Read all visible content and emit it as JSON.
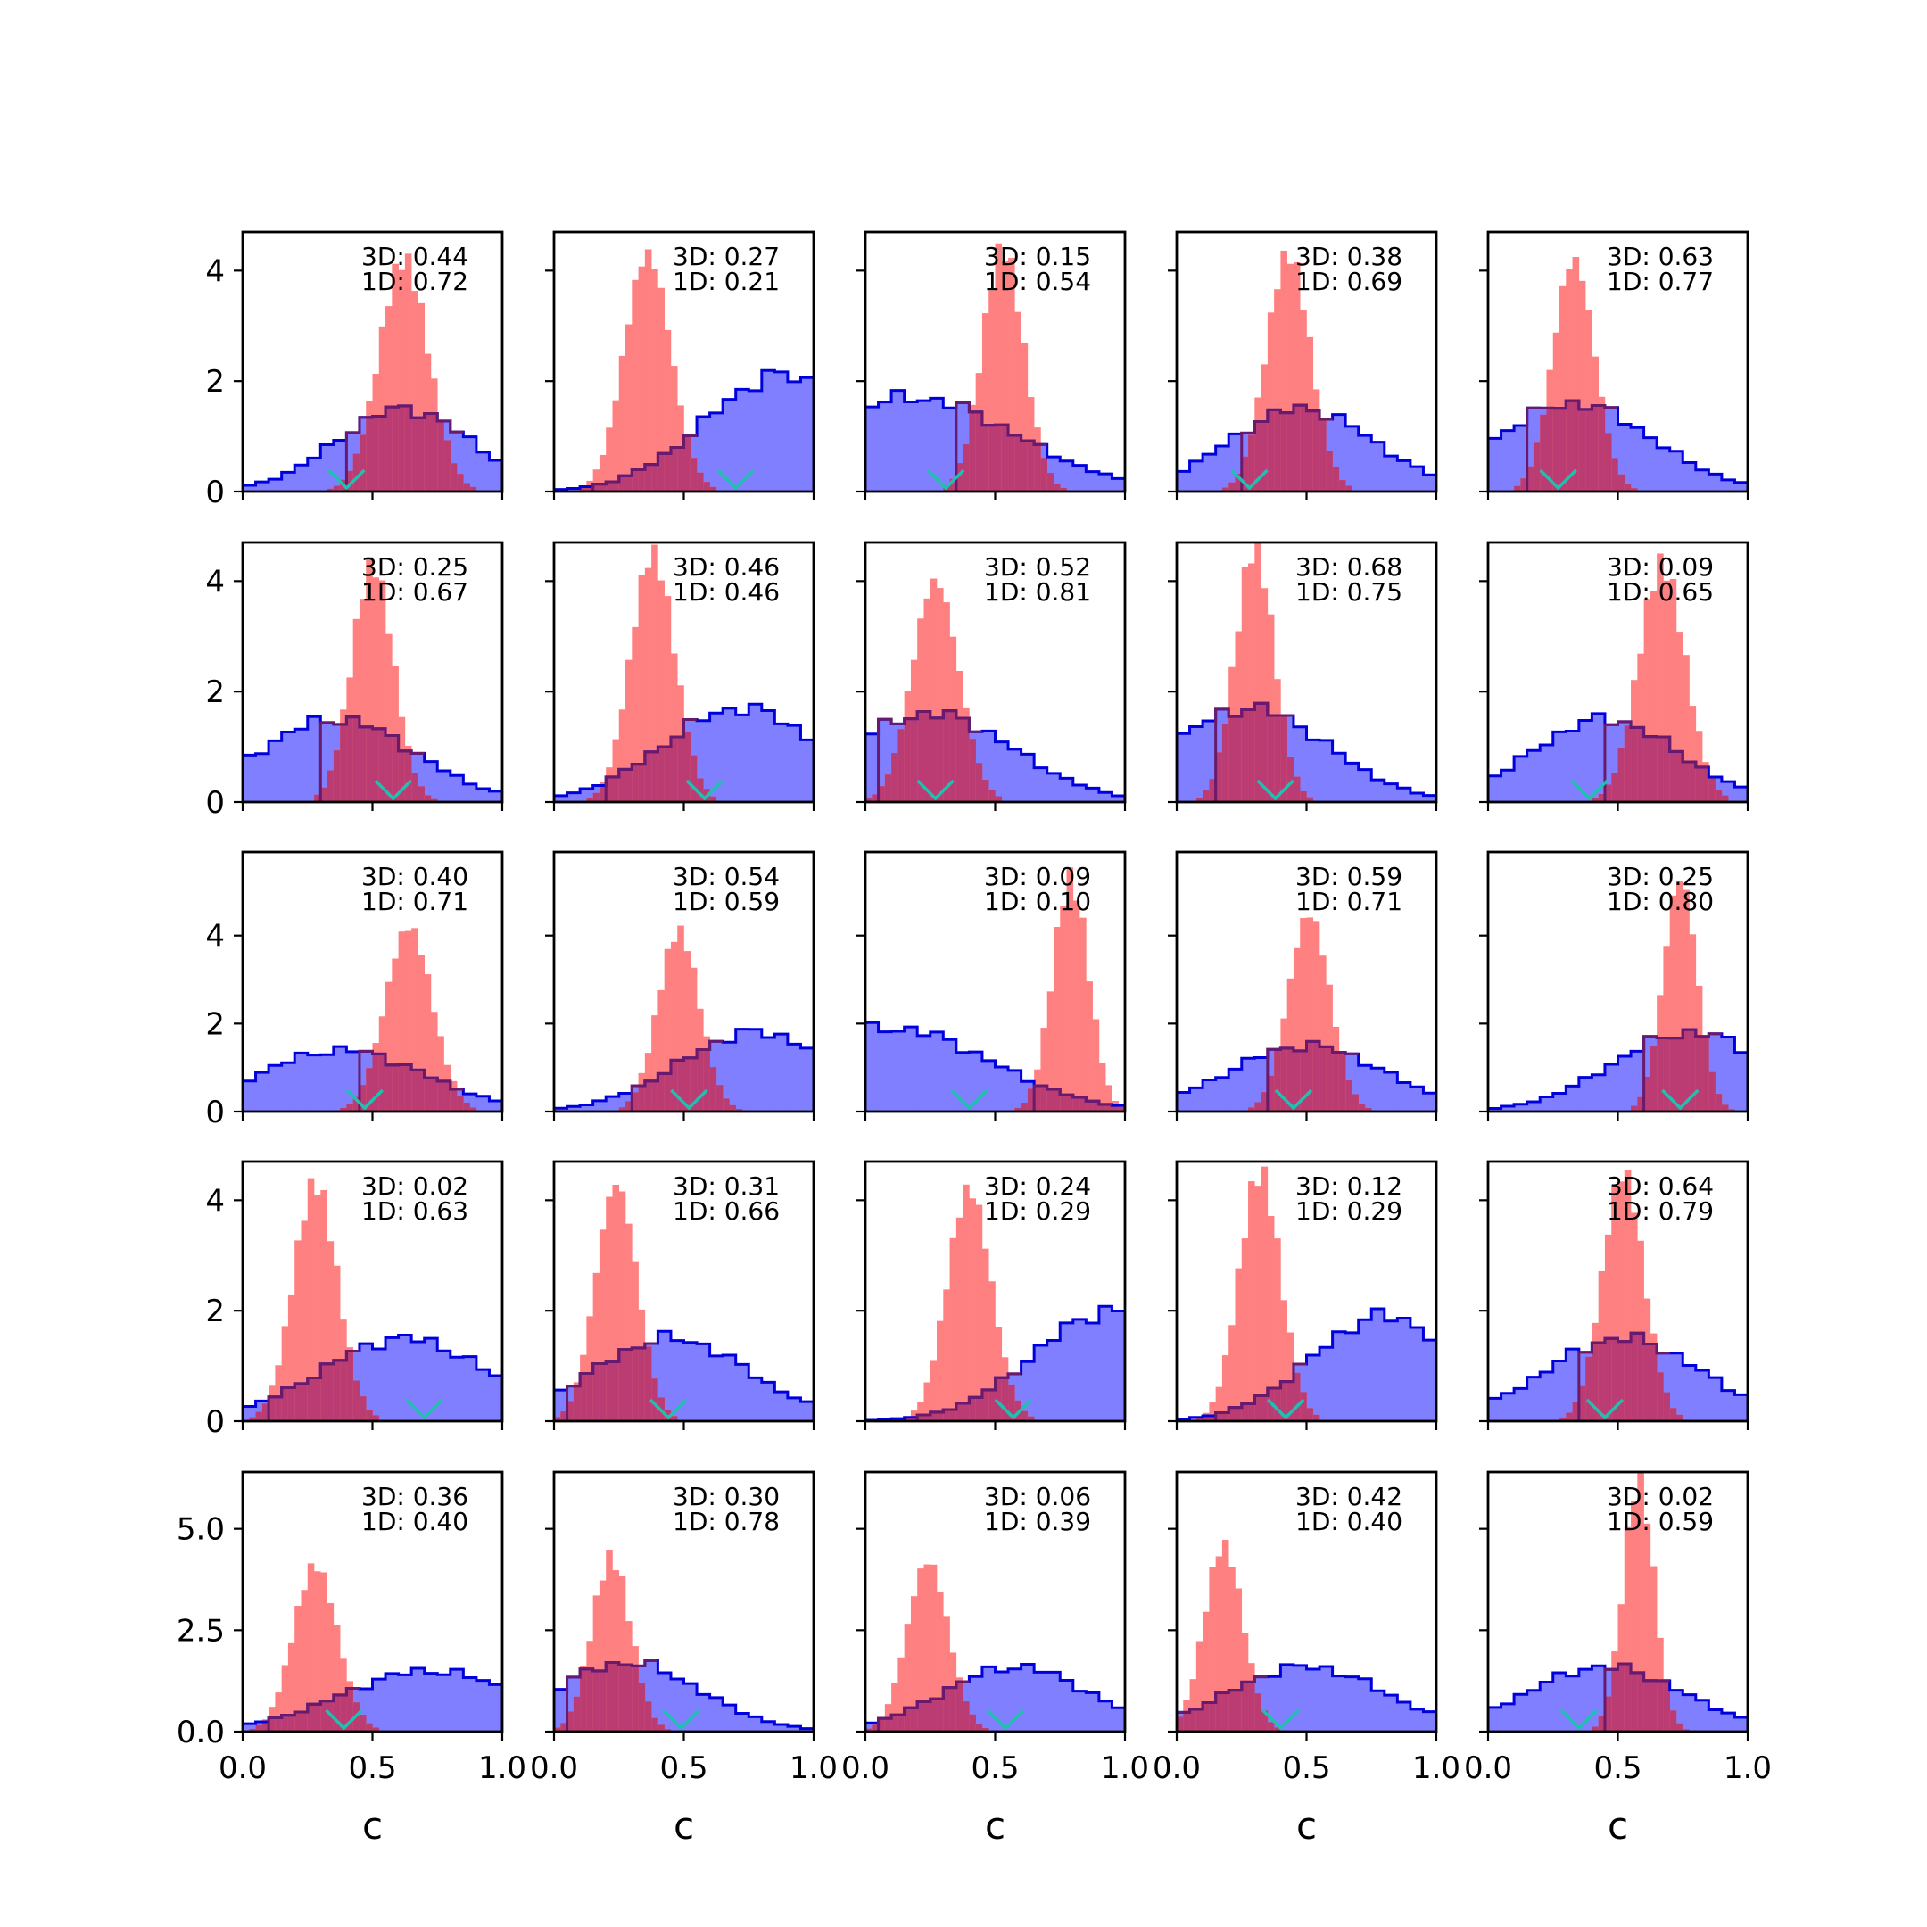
{
  "figure": {
    "colors": {
      "prior_fill": "#7f7fff",
      "prior_line": "#0000dd",
      "posterior_fill": "#ff8080",
      "overlap_fill": "#bb3c72",
      "overlap_line": "#6a1a6a",
      "marker": "#20c0b0",
      "axes": "#000000",
      "background": "#ffffff"
    }
  },
  "chart_data": [
    {
      "type": "histogram",
      "row": 0,
      "col": 0,
      "label1": "3D: 0.44",
      "label2": "1D: 0.72",
      "prior_mu": 0.62,
      "prior_sd": 0.26,
      "prior_peak": 1.5,
      "post_mu": 0.62,
      "post_sd": 0.095,
      "post_peak": 4.2,
      "marker_x": 0.4,
      "ylim": [
        0,
        4.7
      ],
      "yticks": [
        0,
        2,
        4
      ],
      "yticklabels": [
        "0",
        "2",
        "4"
      ],
      "xticks": [
        0,
        0.5,
        1.0
      ],
      "xticklabels": [],
      "xlabel": ""
    },
    {
      "type": "histogram",
      "row": 0,
      "col": 1,
      "label1": "3D: 0.27",
      "label2": "1D: 0.21",
      "prior_mu": 0.88,
      "prior_sd": 0.3,
      "prior_peak": 2.1,
      "post_mu": 0.36,
      "post_sd": 0.09,
      "post_peak": 4.3,
      "marker_x": 0.7,
      "ylim": [
        0,
        4.7
      ],
      "yticks": [
        0,
        2,
        4
      ],
      "yticklabels": [],
      "xticks": [
        0,
        0.5,
        1.0
      ],
      "xticklabels": [],
      "xlabel": ""
    },
    {
      "type": "histogram",
      "row": 0,
      "col": 2,
      "label1": "3D: 0.15",
      "label2": "1D: 0.54",
      "prior_mu": 0.18,
      "prior_sd": 0.4,
      "prior_peak": 1.7,
      "post_mu": 0.53,
      "post_sd": 0.08,
      "post_peak": 4.4,
      "marker_x": 0.31,
      "ylim": [
        0,
        4.7
      ],
      "yticks": [
        0,
        2,
        4
      ],
      "yticklabels": [],
      "xticks": [
        0,
        0.5,
        1.0
      ],
      "xticklabels": [],
      "xlabel": ""
    },
    {
      "type": "histogram",
      "row": 0,
      "col": 3,
      "label1": "3D: 0.38",
      "label2": "1D: 0.69",
      "prior_mu": 0.48,
      "prior_sd": 0.28,
      "prior_peak": 1.5,
      "post_mu": 0.43,
      "post_sd": 0.085,
      "post_peak": 4.3,
      "marker_x": 0.28,
      "ylim": [
        0,
        4.7
      ],
      "yticks": [
        0,
        2,
        4
      ],
      "yticklabels": [],
      "xticks": [
        0,
        0.5,
        1.0
      ],
      "xticklabels": [],
      "xlabel": ""
    },
    {
      "type": "histogram",
      "row": 0,
      "col": 4,
      "label1": "3D: 0.63",
      "label2": "1D: 0.77",
      "prior_mu": 0.33,
      "prior_sd": 0.3,
      "prior_peak": 1.6,
      "post_mu": 0.33,
      "post_sd": 0.08,
      "post_peak": 4.2,
      "marker_x": 0.27,
      "ylim": [
        0,
        4.7
      ],
      "yticks": [
        0,
        2,
        4
      ],
      "yticklabels": [],
      "xticks": [
        0,
        0.5,
        1.0
      ],
      "xticklabels": [],
      "xlabel": ""
    },
    {
      "type": "histogram",
      "row": 1,
      "col": 0,
      "label1": "3D: 0.25",
      "label2": "1D: 0.67",
      "prior_mu": 0.36,
      "prior_sd": 0.3,
      "prior_peak": 1.5,
      "post_mu": 0.5,
      "post_sd": 0.08,
      "post_peak": 4.3,
      "marker_x": 0.58,
      "ylim": [
        0,
        4.7
      ],
      "yticks": [
        0,
        2,
        4
      ],
      "yticklabels": [
        "0",
        "2",
        "4"
      ],
      "xticks": [
        0,
        0.5,
        1.0
      ],
      "xticklabels": [],
      "xlabel": ""
    },
    {
      "type": "histogram",
      "row": 1,
      "col": 1,
      "label1": "3D: 0.46",
      "label2": "1D: 0.46",
      "prior_mu": 0.72,
      "prior_sd": 0.3,
      "prior_peak": 1.7,
      "post_mu": 0.38,
      "post_sd": 0.085,
      "post_peak": 4.5,
      "marker_x": 0.58,
      "ylim": [
        0,
        4.7
      ],
      "yticks": [
        0,
        2,
        4
      ],
      "yticklabels": [],
      "xticks": [
        0,
        0.5,
        1.0
      ],
      "xticklabels": [],
      "xlabel": ""
    },
    {
      "type": "histogram",
      "row": 1,
      "col": 2,
      "label1": "3D: 0.52",
      "label2": "1D: 0.81",
      "prior_mu": 0.25,
      "prior_sd": 0.32,
      "prior_peak": 1.6,
      "post_mu": 0.27,
      "post_sd": 0.09,
      "post_peak": 4.0,
      "marker_x": 0.27,
      "ylim": [
        0,
        4.7
      ],
      "yticks": [
        0,
        2,
        4
      ],
      "yticklabels": [],
      "xticks": [
        0,
        0.5,
        1.0
      ],
      "xticklabels": [],
      "xlabel": ""
    },
    {
      "type": "histogram",
      "row": 1,
      "col": 3,
      "label1": "3D: 0.68",
      "label2": "1D: 0.75",
      "prior_mu": 0.28,
      "prior_sd": 0.3,
      "prior_peak": 1.7,
      "post_mu": 0.3,
      "post_sd": 0.075,
      "post_peak": 4.6,
      "marker_x": 0.38,
      "ylim": [
        0,
        4.7
      ],
      "yticks": [
        0,
        2,
        4
      ],
      "yticklabels": [],
      "xticks": [
        0,
        0.5,
        1.0
      ],
      "xticklabels": [],
      "xlabel": ""
    },
    {
      "type": "histogram",
      "row": 1,
      "col": 4,
      "label1": "3D: 0.09",
      "label2": "1D: 0.65",
      "prior_mu": 0.45,
      "prior_sd": 0.28,
      "prior_peak": 1.5,
      "post_mu": 0.67,
      "post_sd": 0.09,
      "post_peak": 4.3,
      "marker_x": 0.39,
      "ylim": [
        0,
        4.7
      ],
      "yticks": [
        0,
        2,
        4
      ],
      "yticklabels": [],
      "xticks": [
        0,
        0.5,
        1.0
      ],
      "xticklabels": [],
      "xlabel": ""
    },
    {
      "type": "histogram",
      "row": 2,
      "col": 0,
      "label1": "3D: 0.40",
      "label2": "1D: 0.71",
      "prior_mu": 0.38,
      "prior_sd": 0.32,
      "prior_peak": 1.4,
      "post_mu": 0.64,
      "post_sd": 0.09,
      "post_peak": 4.2,
      "marker_x": 0.47,
      "ylim": [
        0,
        5.9
      ],
      "yticks": [
        0,
        2,
        4
      ],
      "yticklabels": [
        "0",
        "2",
        "4"
      ],
      "xticks": [
        0,
        0.5,
        1.0
      ],
      "xticklabels": [],
      "xlabel": ""
    },
    {
      "type": "histogram",
      "row": 2,
      "col": 1,
      "label1": "3D: 0.54",
      "label2": "1D: 0.59",
      "prior_mu": 0.78,
      "prior_sd": 0.3,
      "prior_peak": 1.8,
      "post_mu": 0.48,
      "post_sd": 0.08,
      "post_peak": 4.1,
      "marker_x": 0.52,
      "ylim": [
        0,
        5.9
      ],
      "yticks": [
        0,
        2,
        4
      ],
      "yticklabels": [],
      "xticks": [
        0,
        0.5,
        1.0
      ],
      "xticklabels": [],
      "xlabel": ""
    },
    {
      "type": "histogram",
      "row": 2,
      "col": 2,
      "label1": "3D: 0.09",
      "label2": "1D: 0.10",
      "prior_mu": 0.1,
      "prior_sd": 0.38,
      "prior_peak": 1.9,
      "post_mu": 0.79,
      "post_sd": 0.07,
      "post_peak": 5.3,
      "marker_x": 0.4,
      "ylim": [
        0,
        5.9
      ],
      "yticks": [
        0,
        2,
        4
      ],
      "yticklabels": [],
      "xticks": [
        0,
        0.5,
        1.0
      ],
      "xticklabels": [],
      "xlabel": ""
    },
    {
      "type": "histogram",
      "row": 2,
      "col": 3,
      "label1": "3D: 0.59",
      "label2": "1D: 0.71",
      "prior_mu": 0.5,
      "prior_sd": 0.3,
      "prior_peak": 1.5,
      "post_mu": 0.51,
      "post_sd": 0.08,
      "post_peak": 4.5,
      "marker_x": 0.45,
      "ylim": [
        0,
        5.9
      ],
      "yticks": [
        0,
        2,
        4
      ],
      "yticklabels": [],
      "xticks": [
        0,
        0.5,
        1.0
      ],
      "xticklabels": [],
      "xlabel": ""
    },
    {
      "type": "histogram",
      "row": 2,
      "col": 4,
      "label1": "3D: 0.25",
      "label2": "1D: 0.80",
      "prior_mu": 0.78,
      "prior_sd": 0.3,
      "prior_peak": 1.8,
      "post_mu": 0.74,
      "post_sd": 0.065,
      "post_peak": 5.3,
      "marker_x": 0.74,
      "ylim": [
        0,
        5.9
      ],
      "yticks": [
        0,
        2,
        4
      ],
      "yticklabels": [],
      "xticks": [
        0,
        0.5,
        1.0
      ],
      "xticklabels": [],
      "xlabel": ""
    },
    {
      "type": "histogram",
      "row": 3,
      "col": 0,
      "label1": "3D: 0.02",
      "label2": "1D: 0.63",
      "prior_mu": 0.62,
      "prior_sd": 0.32,
      "prior_peak": 1.5,
      "post_mu": 0.28,
      "post_sd": 0.085,
      "post_peak": 4.3,
      "marker_x": 0.7,
      "ylim": [
        0,
        4.7
      ],
      "yticks": [
        0,
        2,
        4
      ],
      "yticklabels": [
        "0",
        "2",
        "4"
      ],
      "xticks": [
        0,
        0.5,
        1.0
      ],
      "xticklabels": [],
      "xlabel": ""
    },
    {
      "type": "histogram",
      "row": 3,
      "col": 1,
      "label1": "3D: 0.31",
      "label2": "1D: 0.66",
      "prior_mu": 0.45,
      "prior_sd": 0.3,
      "prior_peak": 1.5,
      "post_mu": 0.24,
      "post_sd": 0.08,
      "post_peak": 4.3,
      "marker_x": 0.44,
      "ylim": [
        0,
        4.7
      ],
      "yticks": [
        0,
        2,
        4
      ],
      "yticklabels": [],
      "xticks": [
        0,
        0.5,
        1.0
      ],
      "xticklabels": [],
      "xlabel": ""
    },
    {
      "type": "histogram",
      "row": 3,
      "col": 2,
      "label1": "3D: 0.24",
      "label2": "1D: 0.29",
      "prior_mu": 0.95,
      "prior_sd": 0.3,
      "prior_peak": 2.0,
      "post_mu": 0.4,
      "post_sd": 0.085,
      "post_peak": 4.2,
      "marker_x": 0.57,
      "ylim": [
        0,
        4.7
      ],
      "yticks": [
        0,
        2,
        4
      ],
      "yticklabels": [],
      "xticks": [
        0,
        0.5,
        1.0
      ],
      "xticklabels": [],
      "xlabel": ""
    },
    {
      "type": "histogram",
      "row": 3,
      "col": 3,
      "label1": "3D: 0.12",
      "label2": "1D: 0.29",
      "prior_mu": 0.8,
      "prior_sd": 0.28,
      "prior_peak": 1.9,
      "post_mu": 0.32,
      "post_sd": 0.08,
      "post_peak": 4.5,
      "marker_x": 0.42,
      "ylim": [
        0,
        4.7
      ],
      "yticks": [
        0,
        2,
        4
      ],
      "yticklabels": [],
      "xticks": [
        0,
        0.5,
        1.0
      ],
      "xticklabels": [],
      "xlabel": ""
    },
    {
      "type": "histogram",
      "row": 3,
      "col": 4,
      "label1": "3D: 0.64",
      "label2": "1D: 0.79",
      "prior_mu": 0.52,
      "prior_sd": 0.3,
      "prior_peak": 1.5,
      "post_mu": 0.52,
      "post_sd": 0.08,
      "post_peak": 4.5,
      "marker_x": 0.45,
      "ylim": [
        0,
        4.7
      ],
      "yticks": [
        0,
        2,
        4
      ],
      "yticklabels": [],
      "xticks": [
        0,
        0.5,
        1.0
      ],
      "xticklabels": [],
      "xlabel": ""
    },
    {
      "type": "histogram",
      "row": 4,
      "col": 0,
      "label1": "3D: 0.36",
      "label2": "1D: 0.40",
      "prior_mu": 0.72,
      "prior_sd": 0.34,
      "prior_peak": 1.5,
      "post_mu": 0.28,
      "post_sd": 0.085,
      "post_peak": 4.1,
      "marker_x": 0.39,
      "ylim": [
        0,
        6.4
      ],
      "yticks": [
        0,
        2.5,
        5
      ],
      "yticklabels": [
        "0.0",
        "2.5",
        "5.0"
      ],
      "xticks": [
        0,
        0.5,
        1.0
      ],
      "xticklabels": [
        "0.0",
        "0.5",
        "1.0"
      ],
      "xlabel": "c"
    },
    {
      "type": "histogram",
      "row": 4,
      "col": 1,
      "label1": "3D: 0.30",
      "label2": "1D: 0.78",
      "prior_mu": 0.28,
      "prior_sd": 0.28,
      "prior_peak": 1.7,
      "post_mu": 0.22,
      "post_sd": 0.075,
      "post_peak": 4.3,
      "marker_x": 0.49,
      "ylim": [
        0,
        6.4
      ],
      "yticks": [
        0,
        2.5,
        5
      ],
      "yticklabels": [],
      "xticks": [
        0,
        0.5,
        1.0
      ],
      "xticklabels": [
        "0.0",
        "0.5",
        "1.0"
      ],
      "xlabel": "c"
    },
    {
      "type": "histogram",
      "row": 4,
      "col": 2,
      "label1": "3D: 0.06",
      "label2": "1D: 0.39",
      "prior_mu": 0.58,
      "prior_sd": 0.28,
      "prior_peak": 1.6,
      "post_mu": 0.24,
      "post_sd": 0.08,
      "post_peak": 4.2,
      "marker_x": 0.54,
      "ylim": [
        0,
        6.4
      ],
      "yticks": [
        0,
        2.5,
        5
      ],
      "yticklabels": [],
      "xticks": [
        0,
        0.5,
        1.0
      ],
      "xticklabels": [
        "0.0",
        "0.5",
        "1.0"
      ],
      "xlabel": "c"
    },
    {
      "type": "histogram",
      "row": 4,
      "col": 3,
      "label1": "3D: 0.42",
      "label2": "1D: 0.40",
      "prior_mu": 0.5,
      "prior_sd": 0.3,
      "prior_peak": 1.6,
      "post_mu": 0.18,
      "post_sd": 0.075,
      "post_peak": 4.6,
      "marker_x": 0.4,
      "ylim": [
        0,
        6.4
      ],
      "yticks": [
        0,
        2.5,
        5
      ],
      "yticklabels": [],
      "xticks": [
        0,
        0.5,
        1.0
      ],
      "xticklabels": [
        "0.0",
        "0.5",
        "1.0"
      ],
      "xlabel": "c"
    },
    {
      "type": "histogram",
      "row": 4,
      "col": 4,
      "label1": "3D: 0.02",
      "label2": "1D: 0.59",
      "prior_mu": 0.45,
      "prior_sd": 0.3,
      "prior_peak": 1.6,
      "post_mu": 0.58,
      "post_sd": 0.06,
      "post_peak": 6.2,
      "marker_x": 0.35,
      "ylim": [
        0,
        6.4
      ],
      "yticks": [
        0,
        2.5,
        5
      ],
      "yticklabels": [],
      "xticks": [
        0,
        0.5,
        1.0
      ],
      "xticklabels": [
        "0.0",
        "0.5",
        "1.0"
      ],
      "xlabel": "c"
    }
  ]
}
